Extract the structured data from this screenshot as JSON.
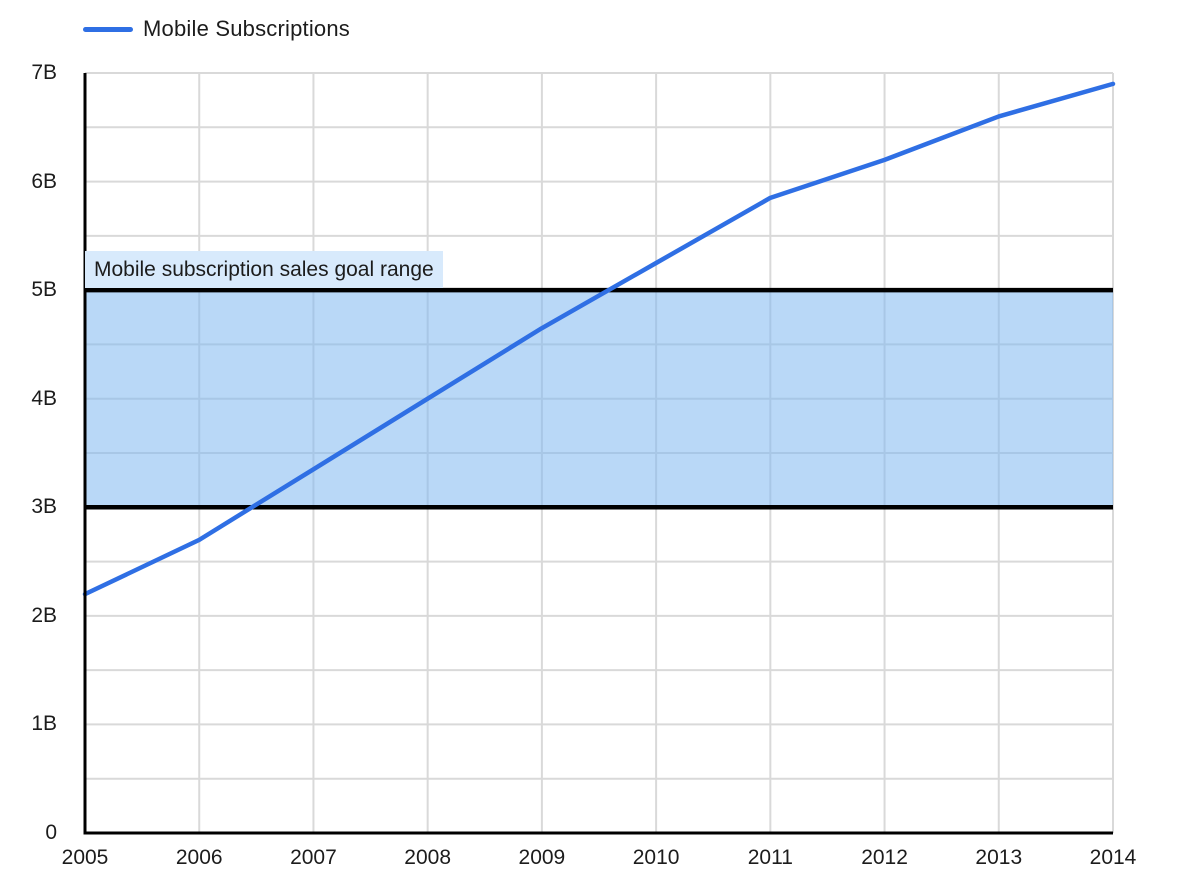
{
  "legend": {
    "label": "Mobile Subscriptions"
  },
  "colors": {
    "line": "#2f6fe4",
    "band_fill": "rgba(127,184,240,0.55)",
    "band_border": "#000000",
    "band_label_bg": "#d8eafc",
    "grid": "#d9d9d9",
    "axis": "#000000",
    "text": "#1c1c1c"
  },
  "chart_data": {
    "type": "line",
    "title": "",
    "xlabel": "",
    "ylabel": "",
    "x": [
      2005,
      2006,
      2007,
      2008,
      2009,
      2010,
      2011,
      2012,
      2013,
      2014
    ],
    "x_tick_labels": [
      "2005",
      "2006",
      "2007",
      "2008",
      "2009",
      "2010",
      "2011",
      "2012",
      "2013",
      "2014"
    ],
    "series": [
      {
        "name": "Mobile Subscriptions",
        "values": [
          2.2,
          2.7,
          3.35,
          4.0,
          4.65,
          5.25,
          5.85,
          6.2,
          6.6,
          6.9
        ]
      }
    ],
    "unit": "billions",
    "ylim": [
      0,
      7
    ],
    "xlim": [
      2005,
      2014
    ],
    "y_tick_labels": [
      "0",
      "1B",
      "2B",
      "3B",
      "4B",
      "5B",
      "6B",
      "7B"
    ],
    "grid": true,
    "grid_minor_step": 0.5,
    "legend_position": "top-left",
    "annotations": {
      "band": {
        "from": 3,
        "to": 5,
        "label": "Mobile subscription sales goal range"
      }
    }
  }
}
